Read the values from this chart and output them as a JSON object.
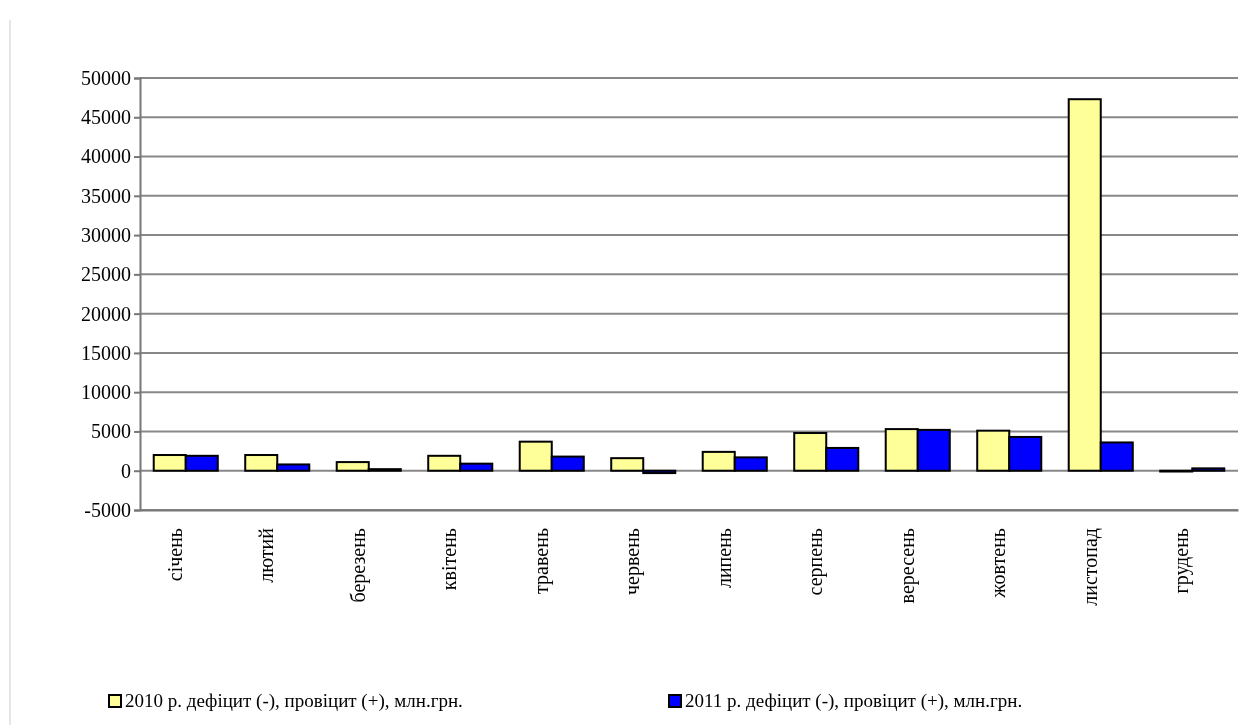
{
  "chart_data": {
    "type": "bar",
    "categories": [
      "січень",
      "лютий",
      "березень",
      "квітень",
      "травень",
      "червень",
      "липень",
      "серпень",
      "вересень",
      "жовтень",
      "листопад",
      "грудень"
    ],
    "series": [
      {
        "name": "2010 р. дефіцит (-), провіцит (+), млн.грн.",
        "color": "#ffff99",
        "values": [
          2000,
          2000,
          1100,
          1900,
          3700,
          1600,
          2400,
          4800,
          5300,
          5100,
          47300,
          -100
        ]
      },
      {
        "name": "2011 р. дефіцит (-), провіцит (+), млн.грн.",
        "color": "#0000ff",
        "values": [
          1900,
          800,
          200,
          900,
          1800,
          -300,
          1700,
          2900,
          5200,
          4300,
          3600,
          300
        ]
      }
    ],
    "ylim": [
      -5000,
      50000
    ],
    "yticks": [
      -5000,
      0,
      5000,
      10000,
      15000,
      20000,
      25000,
      30000,
      35000,
      40000,
      45000,
      50000
    ],
    "grid": "y",
    "legend": "bottom"
  }
}
